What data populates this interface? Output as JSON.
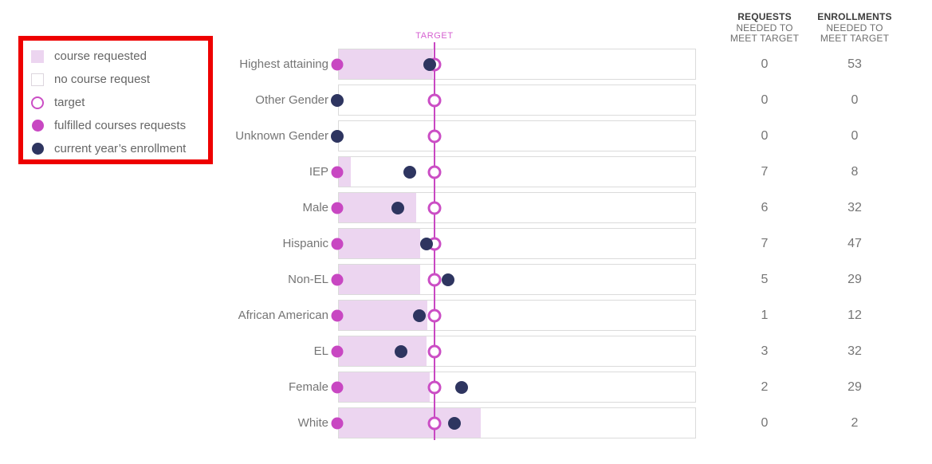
{
  "colors": {
    "annotation_red": "#ee0000",
    "bar_fill_pink": "#ecd5f0",
    "box_border_gray": "#dbdbdb",
    "magenta_accent": "#c847c2",
    "target_line_magenta": "#cb4ec5",
    "target_label_magenta": "#d55fd0",
    "navy_dot": "#2e3560",
    "text_gray": "#757575",
    "header_dark": "#3c3c3c"
  },
  "legend": {
    "items": [
      {
        "label": "course requested",
        "marker": "filled-square-pink"
      },
      {
        "label": "no course request",
        "marker": "empty-square"
      },
      {
        "label": "target",
        "marker": "ring-circle-magenta"
      },
      {
        "label": "fulfilled courses requests",
        "marker": "filled-circle-magenta"
      },
      {
        "label": "current year’s enrollment",
        "marker": "filled-circle-navy"
      }
    ]
  },
  "target": {
    "label": "TARGET",
    "position_pct": 26.8
  },
  "columns": [
    {
      "line1": "REQUESTS",
      "line2": "NEEDED TO",
      "line3": "MEET TARGET"
    },
    {
      "line1": "ENROLLMENTS",
      "line2": "NEEDED TO",
      "line3": "MEET TARGET"
    }
  ],
  "rows": [
    {
      "label": "Highest attaining",
      "requested_pct": 26.4,
      "fulfilled_pct": 0,
      "enrollment_pct": 25.6,
      "requests_needed": 0,
      "enrollments_needed": 53
    },
    {
      "label": "Other Gender",
      "requested_pct": 0,
      "fulfilled_pct": 0,
      "enrollment_pct": 0,
      "requests_needed": 0,
      "enrollments_needed": 0
    },
    {
      "label": "Unknown Gender",
      "requested_pct": 0,
      "fulfilled_pct": 0,
      "enrollment_pct": 0,
      "requests_needed": 0,
      "enrollments_needed": 0
    },
    {
      "label": "IEP",
      "requested_pct": 3.3,
      "fulfilled_pct": 0,
      "enrollment_pct": 19.9,
      "requests_needed": 7,
      "enrollments_needed": 8
    },
    {
      "label": "Male",
      "requested_pct": 21.8,
      "fulfilled_pct": 0,
      "enrollment_pct": 16.5,
      "requests_needed": 6,
      "enrollments_needed": 32
    },
    {
      "label": "Hispanic",
      "requested_pct": 22.9,
      "fulfilled_pct": 0,
      "enrollment_pct": 24.7,
      "requests_needed": 7,
      "enrollments_needed": 47
    },
    {
      "label": "Non-EL",
      "requested_pct": 22.9,
      "fulfilled_pct": 0,
      "enrollment_pct": 30.7,
      "requests_needed": 5,
      "enrollments_needed": 29
    },
    {
      "label": "African American",
      "requested_pct": 24.9,
      "fulfilled_pct": 0,
      "enrollment_pct": 22.6,
      "requests_needed": 1,
      "enrollments_needed": 12
    },
    {
      "label": "EL",
      "requested_pct": 24.7,
      "fulfilled_pct": 0,
      "enrollment_pct": 17.4,
      "requests_needed": 3,
      "enrollments_needed": 32
    },
    {
      "label": "Female",
      "requested_pct": 25.6,
      "fulfilled_pct": 0,
      "enrollment_pct": 34.5,
      "requests_needed": 2,
      "enrollments_needed": 29
    },
    {
      "label": "White",
      "requested_pct": 39.8,
      "fulfilled_pct": 0,
      "enrollment_pct": 32.5,
      "requests_needed": 0,
      "enrollments_needed": 2
    }
  ],
  "chart_data": {
    "type": "bar",
    "orientation": "horizontal",
    "title": "",
    "xlabel": "",
    "ylabel": "",
    "axis_note": "x-axis is unlabeled; numeric values below are percent of plot width, axis range [0,100]",
    "xlim": [
      0,
      100
    ],
    "grid": false,
    "legend_position": "left, inside red annotation box",
    "categories": [
      "Highest attaining",
      "Other Gender",
      "Unknown Gender",
      "IEP",
      "Male",
      "Hispanic",
      "Non-EL",
      "African American",
      "EL",
      "Female",
      "White"
    ],
    "series": [
      {
        "name": "course requested (bar length, % of axis)",
        "values": [
          26.4,
          0,
          0,
          3.3,
          21.8,
          22.9,
          22.9,
          24.9,
          24.7,
          25.6,
          39.8
        ]
      },
      {
        "name": "fulfilled courses requests (dot, % of axis)",
        "values": [
          0,
          0,
          0,
          0,
          0,
          0,
          0,
          0,
          0,
          0,
          0
        ]
      },
      {
        "name": "current year’s enrollment (dot, % of axis)",
        "values": [
          25.6,
          0,
          0,
          19.9,
          16.5,
          24.7,
          30.7,
          22.6,
          17.4,
          34.5,
          32.5
        ]
      },
      {
        "name": "target (vertical line, % of axis)",
        "values": [
          26.8,
          26.8,
          26.8,
          26.8,
          26.8,
          26.8,
          26.8,
          26.8,
          26.8,
          26.8,
          26.8
        ]
      }
    ],
    "annotations": {
      "target_line_label": "TARGET"
    },
    "table": {
      "headers": [
        "REQUESTS NEEDED TO MEET TARGET",
        "ENROLLMENTS NEEDED TO MEET TARGET"
      ],
      "requests_needed": [
        0,
        0,
        0,
        7,
        6,
        7,
        5,
        1,
        3,
        2,
        0
      ],
      "enrollments_needed": [
        53,
        0,
        0,
        8,
        32,
        47,
        29,
        12,
        32,
        29,
        2
      ]
    }
  }
}
